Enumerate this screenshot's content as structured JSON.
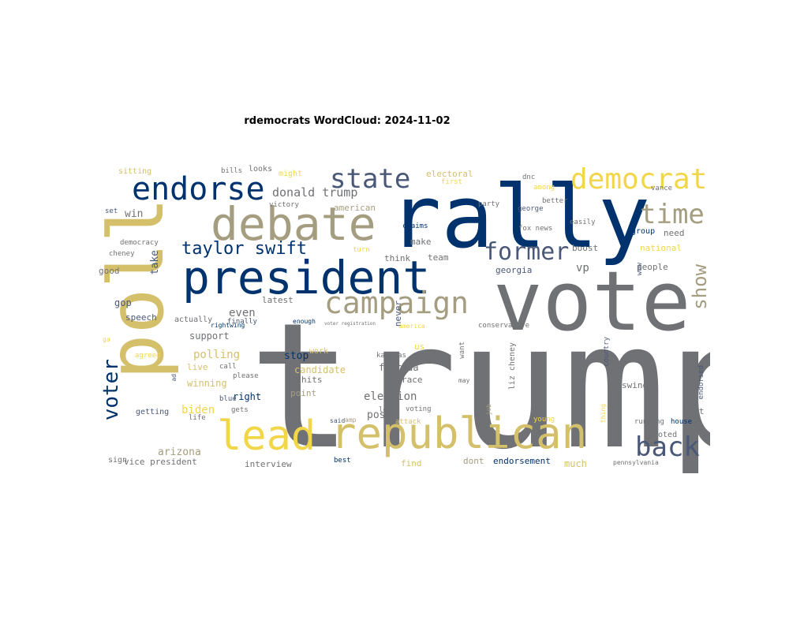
{
  "title": "rdemocrats WordCloud: 2024-11-02",
  "palette": {
    "navy": "#00326e",
    "slate": "#4a5878",
    "gray": "#6f7174",
    "khaki": "#a59d80",
    "gold": "#d4c06a",
    "yellow": "#f2d64a"
  },
  "words": [
    "trump",
    "vote",
    "rally",
    "poll",
    "president",
    "republican",
    "lead",
    "debate",
    "endorse",
    "state",
    "democrat",
    "campaign",
    "time",
    "voter",
    "back",
    "former",
    "taylor swift",
    "show",
    "donald trump",
    "even",
    "vp",
    "polling",
    "biden",
    "support",
    "arizona",
    "election",
    "candidate",
    "point",
    "hits",
    "post",
    "florida",
    "race",
    "stop",
    "kamalas",
    "right",
    "winning",
    "live",
    "call",
    "please",
    "latest",
    "actually",
    "finally",
    "speech",
    "gop",
    "good",
    "take",
    "democracy",
    "cheney",
    "win",
    "set",
    "sitting",
    "bills",
    "looks",
    "might",
    "victory",
    "american",
    "electoral",
    "first",
    "dnc",
    "among",
    "vance",
    "better",
    "george",
    "party",
    "claims",
    "fox news",
    "easily",
    "group",
    "need",
    "boost",
    "national",
    "people",
    "think",
    "team",
    "make",
    "turn",
    "georgia",
    "never",
    "conservative",
    "enough",
    "voter registration",
    "america",
    "us",
    "want",
    "work",
    "liz cheney",
    "swing",
    "endorsed",
    "host",
    "house",
    "running",
    "voted",
    "thing",
    "country",
    "wow",
    "job",
    "may",
    "young",
    "said",
    "amp",
    "attack",
    "voting",
    "love",
    "gets",
    "life",
    "getting",
    "blue",
    "agreed",
    "ga",
    "ad",
    "sign",
    "vice president",
    "interview",
    "find",
    "dont",
    "endorsement",
    "much",
    "best",
    "pennsylvania",
    "rightwing"
  ]
}
